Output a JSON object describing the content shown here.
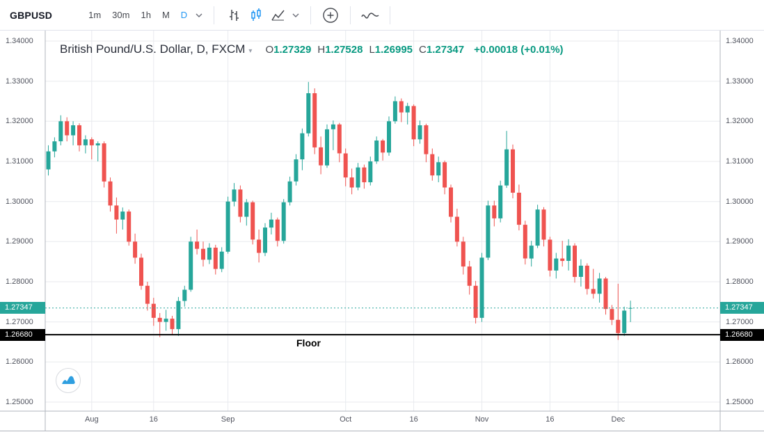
{
  "toolbar": {
    "symbol": "GBPUSD",
    "intervals": [
      "1m",
      "30m",
      "1h",
      "M",
      "D"
    ],
    "active_interval": "D",
    "accent_color": "#2196f3",
    "icons": [
      "bars-icon",
      "candles-icon",
      "area-icon",
      "chevron-down-icon",
      "compare-plus-icon",
      "indicator-line-icon"
    ]
  },
  "legend": {
    "title": "British Pound/U.S. Dollar, D, FXCM",
    "o_label": "O",
    "o_value": "1.27329",
    "h_label": "H",
    "h_value": "1.27528",
    "l_label": "L",
    "l_value": "1.26995",
    "c_label": "C",
    "c_value": "1.27347",
    "change": "+0.00018 (+0.01%)"
  },
  "axes": {
    "price_ticks": [
      "1.34000",
      "1.33000",
      "1.32000",
      "1.31000",
      "1.30000",
      "1.29000",
      "1.28000",
      "1.27000",
      "1.26000",
      "1.25000"
    ],
    "time_labels": [
      {
        "index": 7,
        "label": "Aug"
      },
      {
        "index": 17,
        "label": "16"
      },
      {
        "index": 29,
        "label": "Sep"
      },
      {
        "index": 48,
        "label": "Oct"
      },
      {
        "index": 59,
        "label": "16"
      },
      {
        "index": 70,
        "label": "Nov"
      },
      {
        "index": 81,
        "label": "16"
      },
      {
        "index": 92,
        "label": "Dec"
      }
    ],
    "current_price_label": "1.27347",
    "floor_price_label": "1.26680"
  },
  "annotations": {
    "floor_text": "Floor"
  },
  "chart_data": {
    "type": "candlestick",
    "title": "British Pound/U.S. Dollar, D, FXCM",
    "symbol": "GBPUSD",
    "interval": "D",
    "exchange": "FXCM",
    "up_color": "#26a69a",
    "down_color": "#ef5350",
    "y_min": 1.25,
    "y_max": 1.34,
    "current_price": 1.27347,
    "floor_price": 1.2668,
    "candles": [
      [
        1.308,
        1.314,
        1.3065,
        1.3125
      ],
      [
        1.3125,
        1.316,
        1.311,
        1.315
      ],
      [
        1.315,
        1.3215,
        1.314,
        1.32
      ],
      [
        1.32,
        1.321,
        1.315,
        1.3165
      ],
      [
        1.3165,
        1.32,
        1.314,
        1.319
      ],
      [
        1.319,
        1.3195,
        1.3125,
        1.314
      ],
      [
        1.314,
        1.3165,
        1.312,
        1.3155
      ],
      [
        1.3155,
        1.316,
        1.3105,
        1.314
      ],
      [
        1.314,
        1.315,
        1.31,
        1.3145
      ],
      [
        1.3145,
        1.315,
        1.3035,
        1.305
      ],
      [
        1.305,
        1.306,
        1.2975,
        1.299
      ],
      [
        1.299,
        1.301,
        1.292,
        1.2955
      ],
      [
        1.2955,
        1.2985,
        1.293,
        1.2975
      ],
      [
        1.2975,
        1.298,
        1.289,
        1.29
      ],
      [
        1.29,
        1.292,
        1.2845,
        1.286
      ],
      [
        1.286,
        1.287,
        1.278,
        1.279
      ],
      [
        1.279,
        1.28,
        1.2728,
        1.2745
      ],
      [
        1.2745,
        1.276,
        1.269,
        1.271
      ],
      [
        1.271,
        1.2722,
        1.2662,
        1.27
      ],
      [
        1.27,
        1.273,
        1.2678,
        1.2708
      ],
      [
        1.2708,
        1.2715,
        1.2668,
        1.2682
      ],
      [
        1.2682,
        1.2762,
        1.2665,
        1.2752
      ],
      [
        1.2752,
        1.279,
        1.2738,
        1.278
      ],
      [
        1.278,
        1.2912,
        1.2775,
        1.29
      ],
      [
        1.29,
        1.293,
        1.2868,
        1.2882
      ],
      [
        1.2882,
        1.29,
        1.2838,
        1.2855
      ],
      [
        1.2855,
        1.2896,
        1.2844,
        1.2885
      ],
      [
        1.2885,
        1.2892,
        1.2818,
        1.2832
      ],
      [
        1.2832,
        1.2886,
        1.2824,
        1.2875
      ],
      [
        1.2875,
        1.3012,
        1.287,
        1.3
      ],
      [
        1.3,
        1.3046,
        1.2988,
        1.303
      ],
      [
        1.303,
        1.304,
        1.2948,
        1.2962
      ],
      [
        1.2962,
        1.3006,
        1.294,
        1.2998
      ],
      [
        1.2998,
        1.3002,
        1.2893,
        1.2905
      ],
      [
        1.2905,
        1.293,
        1.2848,
        1.2872
      ],
      [
        1.2872,
        1.2946,
        1.2864,
        1.2935
      ],
      [
        1.2935,
        1.2972,
        1.2918,
        1.2955
      ],
      [
        1.2955,
        1.296,
        1.2888,
        1.2902
      ],
      [
        1.2902,
        1.3006,
        1.2895,
        1.2998
      ],
      [
        1.2998,
        1.3062,
        1.299,
        1.305
      ],
      [
        1.305,
        1.3118,
        1.304,
        1.3105
      ],
      [
        1.3105,
        1.3182,
        1.3078,
        1.317
      ],
      [
        1.317,
        1.3298,
        1.3162,
        1.327
      ],
      [
        1.327,
        1.3282,
        1.3118,
        1.3135
      ],
      [
        1.3135,
        1.3162,
        1.3068,
        1.309
      ],
      [
        1.309,
        1.3192,
        1.3084,
        1.318
      ],
      [
        1.318,
        1.3202,
        1.3128,
        1.3192
      ],
      [
        1.3192,
        1.3196,
        1.3098,
        1.312
      ],
      [
        1.312,
        1.3132,
        1.3038,
        1.306
      ],
      [
        1.306,
        1.3082,
        1.3018,
        1.3035
      ],
      [
        1.3035,
        1.3096,
        1.3028,
        1.3085
      ],
      [
        1.3085,
        1.3092,
        1.3032,
        1.3048
      ],
      [
        1.3048,
        1.3112,
        1.304,
        1.31
      ],
      [
        1.31,
        1.3162,
        1.3094,
        1.3152
      ],
      [
        1.3152,
        1.3156,
        1.3102,
        1.3122
      ],
      [
        1.3122,
        1.3212,
        1.3114,
        1.32
      ],
      [
        1.32,
        1.3262,
        1.3194,
        1.325
      ],
      [
        1.325,
        1.3257,
        1.3198,
        1.3222
      ],
      [
        1.3222,
        1.3246,
        1.3192,
        1.3238
      ],
      [
        1.3238,
        1.3242,
        1.3138,
        1.3155
      ],
      [
        1.3155,
        1.3202,
        1.3144,
        1.319
      ],
      [
        1.319,
        1.3194,
        1.3098,
        1.3118
      ],
      [
        1.3118,
        1.3132,
        1.3052,
        1.3065
      ],
      [
        1.3065,
        1.3112,
        1.3048,
        1.3098
      ],
      [
        1.3098,
        1.3102,
        1.3018,
        1.3035
      ],
      [
        1.3035,
        1.3042,
        1.2948,
        1.2962
      ],
      [
        1.2962,
        1.2982,
        1.2888,
        1.29
      ],
      [
        1.29,
        1.2912,
        1.2818,
        1.2838
      ],
      [
        1.2838,
        1.2852,
        1.2768,
        1.279
      ],
      [
        1.279,
        1.2802,
        1.2696,
        1.271
      ],
      [
        1.271,
        1.2872,
        1.27,
        1.286
      ],
      [
        1.286,
        1.3002,
        1.2854,
        1.299
      ],
      [
        1.299,
        1.3002,
        1.2938,
        1.2958
      ],
      [
        1.2958,
        1.3052,
        1.2948,
        1.304
      ],
      [
        1.304,
        1.3176,
        1.3034,
        1.313
      ],
      [
        1.313,
        1.3142,
        1.3008,
        1.3022
      ],
      [
        1.3022,
        1.3042,
        1.2928,
        1.2942
      ],
      [
        1.2942,
        1.2952,
        1.2843,
        1.2858
      ],
      [
        1.2858,
        1.2902,
        1.2838,
        1.289
      ],
      [
        1.289,
        1.2992,
        1.2884,
        1.298
      ],
      [
        1.298,
        1.2986,
        1.2888,
        1.2905
      ],
      [
        1.2905,
        1.2912,
        1.2813,
        1.2828
      ],
      [
        1.2828,
        1.2872,
        1.2808,
        1.2858
      ],
      [
        1.2858,
        1.2902,
        1.2838,
        1.2852
      ],
      [
        1.2852,
        1.2906,
        1.2828,
        1.289
      ],
      [
        1.289,
        1.2896,
        1.2798,
        1.2812
      ],
      [
        1.2812,
        1.2856,
        1.2788,
        1.284
      ],
      [
        1.284,
        1.2846,
        1.2768,
        1.2782
      ],
      [
        1.2782,
        1.2832,
        1.2758,
        1.277
      ],
      [
        1.277,
        1.2822,
        1.2748,
        1.2808
      ],
      [
        1.2808,
        1.2812,
        1.2718,
        1.2732
      ],
      [
        1.2732,
        1.2742,
        1.2692,
        1.2705
      ],
      [
        1.2705,
        1.2795,
        1.2655,
        1.2672
      ],
      [
        1.2672,
        1.2738,
        1.2665,
        1.2728
      ],
      [
        1.27329,
        1.27528,
        1.26995,
        1.27347
      ]
    ]
  }
}
